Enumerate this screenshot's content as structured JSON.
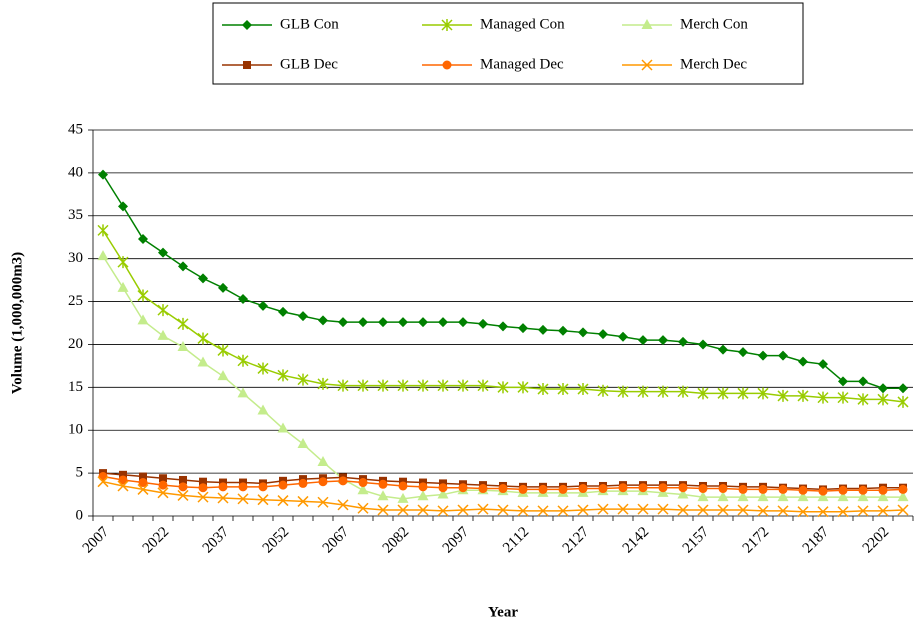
{
  "chart_data": {
    "type": "line",
    "x_label": "Year",
    "y_label": "Volume (1,000,000m3)",
    "categories": [
      "2007",
      null,
      null,
      "2022",
      null,
      null,
      "2037",
      null,
      null,
      "2052",
      null,
      null,
      "2067",
      null,
      null,
      "2082",
      null,
      null,
      "2097",
      null,
      null,
      "2112",
      null,
      null,
      "2127",
      null,
      null,
      "2142",
      null,
      null,
      "2157",
      null,
      null,
      "2172",
      null,
      null,
      "2187",
      null,
      null,
      "2202",
      null
    ],
    "ylim": [
      0,
      45
    ],
    "yticks": [
      0,
      5,
      10,
      15,
      20,
      25,
      30,
      35,
      40,
      45
    ],
    "grid": true,
    "series": [
      {
        "name": "GLB Con",
        "color": "#008000",
        "marker": "diamond",
        "values": [
          39.8,
          36.1,
          32.3,
          30.7,
          29.1,
          27.7,
          26.6,
          25.3,
          24.5,
          23.8,
          23.3,
          22.8,
          22.6,
          22.6,
          22.6,
          22.6,
          22.6,
          22.6,
          22.6,
          22.4,
          22.1,
          21.9,
          21.7,
          21.6,
          21.4,
          21.2,
          20.9,
          20.5,
          20.5,
          20.3,
          20.0,
          19.4,
          19.1,
          18.7,
          18.7,
          18.0,
          17.7,
          15.7,
          15.7,
          14.9,
          14.9
        ]
      },
      {
        "name": "Managed Con",
        "color": "#99cc00",
        "marker": "asterisk",
        "values": [
          33.3,
          29.6,
          25.7,
          24.0,
          22.4,
          20.7,
          19.3,
          18.1,
          17.2,
          16.4,
          15.9,
          15.4,
          15.2,
          15.2,
          15.2,
          15.2,
          15.2,
          15.2,
          15.2,
          15.2,
          15.0,
          15.0,
          14.8,
          14.8,
          14.8,
          14.6,
          14.5,
          14.5,
          14.5,
          14.5,
          14.3,
          14.3,
          14.3,
          14.3,
          14.0,
          14.0,
          13.8,
          13.8,
          13.6,
          13.6,
          13.3
        ]
      },
      {
        "name": "Merch Con",
        "color": "#c4ec8c",
        "marker": "triangle",
        "values": [
          30.3,
          26.6,
          22.8,
          21.0,
          19.7,
          17.9,
          16.3,
          14.3,
          12.3,
          10.2,
          8.4,
          6.3,
          4.3,
          3.0,
          2.3,
          2.0,
          2.3,
          2.5,
          3.0,
          3.0,
          2.9,
          2.7,
          2.7,
          2.7,
          2.7,
          2.9,
          2.9,
          2.9,
          2.7,
          2.5,
          2.2,
          2.2,
          2.2,
          2.2,
          2.2,
          2.2,
          2.2,
          2.2,
          2.2,
          2.2,
          2.2
        ]
      },
      {
        "name": "GLB Dec",
        "color": "#993300",
        "marker": "square",
        "values": [
          5.0,
          4.8,
          4.6,
          4.4,
          4.2,
          4.0,
          3.9,
          3.9,
          3.8,
          4.1,
          4.3,
          4.4,
          4.5,
          4.3,
          4.1,
          4.0,
          3.9,
          3.8,
          3.7,
          3.6,
          3.5,
          3.4,
          3.4,
          3.4,
          3.5,
          3.5,
          3.6,
          3.6,
          3.6,
          3.6,
          3.5,
          3.5,
          3.4,
          3.4,
          3.3,
          3.2,
          3.1,
          3.2,
          3.2,
          3.3,
          3.3
        ]
      },
      {
        "name": "Managed Dec",
        "color": "#ff6600",
        "marker": "circle",
        "values": [
          4.6,
          4.2,
          3.9,
          3.6,
          3.4,
          3.3,
          3.4,
          3.4,
          3.4,
          3.6,
          3.8,
          4.0,
          4.1,
          3.9,
          3.7,
          3.5,
          3.4,
          3.3,
          3.3,
          3.2,
          3.2,
          3.1,
          3.1,
          3.1,
          3.2,
          3.2,
          3.3,
          3.3,
          3.3,
          3.3,
          3.2,
          3.2,
          3.1,
          3.1,
          3.1,
          3.0,
          2.9,
          3.0,
          3.0,
          3.0,
          3.1
        ]
      },
      {
        "name": "Merch Dec",
        "color": "#ff9900",
        "marker": "x",
        "values": [
          4.0,
          3.5,
          3.1,
          2.7,
          2.4,
          2.2,
          2.1,
          2.0,
          1.9,
          1.8,
          1.7,
          1.6,
          1.3,
          0.9,
          0.7,
          0.7,
          0.7,
          0.6,
          0.7,
          0.8,
          0.7,
          0.6,
          0.6,
          0.6,
          0.7,
          0.8,
          0.8,
          0.8,
          0.8,
          0.7,
          0.7,
          0.7,
          0.7,
          0.6,
          0.6,
          0.5,
          0.5,
          0.5,
          0.6,
          0.6,
          0.7
        ]
      }
    ]
  }
}
